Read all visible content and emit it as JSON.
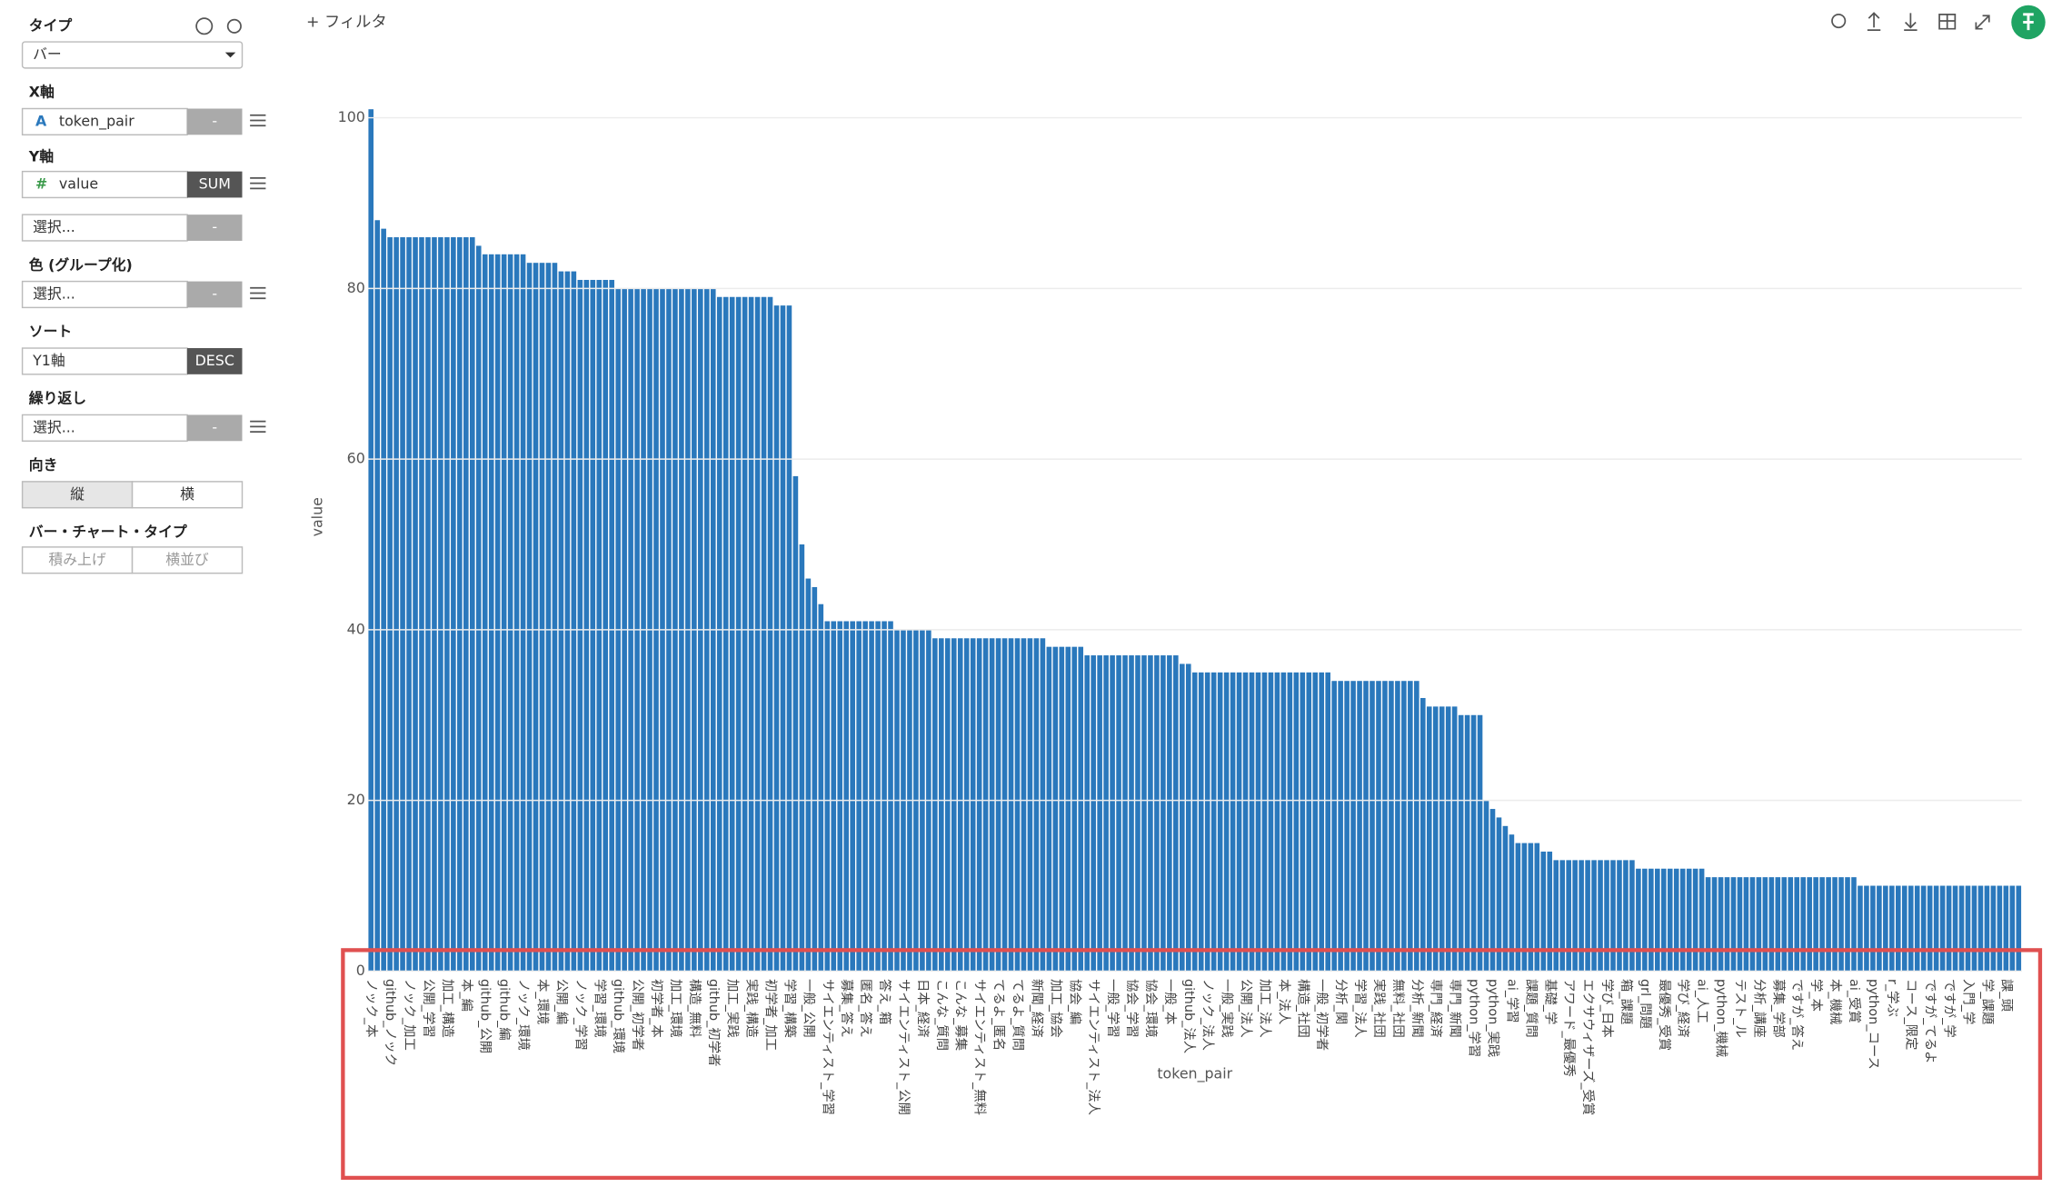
{
  "toolbar": {
    "filter": "+ フィルタ"
  },
  "sidebar": {
    "type_label": "タイプ",
    "type_value": "バー",
    "x_axis_label": "X軸",
    "x_field_icon": "A",
    "x_field": "token_pair",
    "x_agg": "-",
    "y_axis_label": "Y軸",
    "y_field_icon": "#",
    "y_field": "value",
    "y_agg": "SUM",
    "extra_select": "選択...",
    "extra_agg": "-",
    "color_label": "色 (グループ化)",
    "color_select": "選択...",
    "color_agg": "-",
    "sort_label": "ソート",
    "sort_field": "Y1軸",
    "sort_order": "DESC",
    "wrap_label": "繰り返し",
    "wrap_select": "選択...",
    "wrap_agg": "-",
    "orientation_label": "向き",
    "orientation_options": [
      "縦",
      "横"
    ],
    "bar_type_label": "バー・チャート・タイプ",
    "bar_type_options": [
      "積み上げ",
      "横並び"
    ]
  },
  "chart_data": {
    "type": "bar",
    "x_label": "token_pair",
    "y_label": "value",
    "color": "#2a78bc",
    "grid": true,
    "ylim": [
      0,
      101
    ],
    "yticks": [
      0,
      20,
      40,
      60,
      80,
      100
    ],
    "categories": [
      "ノック_本",
      null,
      null,
      "github_ノック",
      null,
      null,
      "ノック_加工",
      null,
      null,
      "公開_学習",
      null,
      null,
      "加工_構造",
      null,
      null,
      "本_編",
      null,
      null,
      "github_公開",
      null,
      null,
      "github_編",
      null,
      null,
      "ノック_環境",
      null,
      null,
      "本_環境",
      null,
      null,
      "公開_編",
      null,
      null,
      "ノック_学習",
      null,
      null,
      "学習_環境",
      null,
      null,
      "github_環境",
      null,
      null,
      "公開_初学者",
      null,
      null,
      "初学者_本",
      null,
      null,
      "加工_環境",
      null,
      null,
      "構造_無料",
      null,
      null,
      "github_初学者",
      null,
      null,
      "加工_実践",
      null,
      null,
      "実践_構造",
      null,
      null,
      "初学者_加工",
      null,
      null,
      "学習_構築",
      null,
      null,
      "一般_公開",
      null,
      null,
      "サイエンティスト_学習",
      null,
      null,
      "募集_答え",
      null,
      null,
      "匿名_答え",
      null,
      null,
      "答え_箱",
      null,
      null,
      "サイエンティスト_公開",
      null,
      null,
      "日本_経済",
      null,
      null,
      "こんな_質問",
      null,
      null,
      "こんな_募集",
      null,
      null,
      "サイエンティスト_無料",
      null,
      null,
      "てるよ_匿名",
      null,
      null,
      "てるよ_質問",
      null,
      null,
      "新聞_経済",
      null,
      null,
      "加工_協会",
      null,
      null,
      "協会_編",
      null,
      null,
      "サイエンティスト_法人",
      null,
      null,
      "一般_学習",
      null,
      null,
      "協会_学習",
      null,
      null,
      "協会_環境",
      null,
      null,
      "一般_本",
      null,
      null,
      "github_法人",
      null,
      null,
      "ノック_法人",
      null,
      null,
      "一般_実践",
      null,
      null,
      "公開_法人",
      null,
      null,
      "加工_法人",
      null,
      null,
      "本_法人",
      null,
      null,
      "構造_社団",
      null,
      null,
      "一般_初学者",
      null,
      null,
      "分析_関",
      null,
      null,
      "学習_法人",
      null,
      null,
      "実践_社団",
      null,
      null,
      "無料_社団",
      null,
      null,
      "分析_新聞",
      null,
      null,
      "専門_経済",
      null,
      null,
      "専門_新聞",
      null,
      null,
      "python_学習",
      null,
      null,
      "python_実践",
      null,
      null,
      "ai_学習",
      null,
      null,
      "課題_質問",
      null,
      null,
      "基礎_学",
      null,
      null,
      "アワード_最優秀",
      null,
      null,
      "エクサウィザーズ_受賞",
      null,
      null,
      "学び_日本",
      null,
      null,
      "箱_課題",
      null,
      null,
      "grl_問題",
      null,
      null,
      "最優秀_受賞",
      null,
      null,
      "学び_経済",
      null,
      null,
      "ai_人工",
      null,
      null,
      "python_機械",
      null,
      null,
      "テスト_ル",
      null,
      null,
      "分析_講座",
      null,
      null,
      "募集_学部",
      null,
      null,
      "ですが_答え",
      null,
      null,
      "学_本",
      null,
      null,
      "本_機械",
      null,
      null,
      "ai_受賞",
      null,
      null,
      "python_コース",
      null,
      null,
      "r_学ぶ",
      null,
      null,
      "コース_限定",
      null,
      null,
      "ですが_てるよ",
      null,
      null,
      "ですが_学",
      null,
      null,
      "入門_学",
      null,
      null,
      "学_課題",
      null,
      null,
      "課_頭",
      null,
      null
    ],
    "values": [
      101,
      88,
      87,
      86,
      86,
      86,
      86,
      86,
      86,
      86,
      86,
      86,
      86,
      86,
      86,
      86,
      86,
      85,
      84,
      84,
      84,
      84,
      84,
      84,
      84,
      83,
      83,
      83,
      83,
      83,
      82,
      82,
      82,
      81,
      81,
      81,
      81,
      81,
      81,
      80,
      80,
      80,
      80,
      80,
      80,
      80,
      80,
      80,
      80,
      80,
      80,
      80,
      80,
      80,
      80,
      79,
      79,
      79,
      79,
      79,
      79,
      79,
      79,
      79,
      78,
      78,
      78,
      58,
      50,
      46,
      45,
      43,
      41,
      41,
      41,
      41,
      41,
      41,
      41,
      41,
      41,
      41,
      41,
      40,
      40,
      40,
      40,
      40,
      40,
      39,
      39,
      39,
      39,
      39,
      39,
      39,
      39,
      39,
      39,
      39,
      39,
      39,
      39,
      39,
      39,
      39,
      39,
      38,
      38,
      38,
      38,
      38,
      38,
      37,
      37,
      37,
      37,
      37,
      37,
      37,
      37,
      37,
      37,
      37,
      37,
      37,
      37,
      37,
      36,
      36,
      35,
      35,
      35,
      35,
      35,
      35,
      35,
      35,
      35,
      35,
      35,
      35,
      35,
      35,
      35,
      35,
      35,
      35,
      35,
      35,
      35,
      35,
      34,
      34,
      34,
      34,
      34,
      34,
      34,
      34,
      34,
      34,
      34,
      34,
      34,
      34,
      32,
      31,
      31,
      31,
      31,
      31,
      30,
      30,
      30,
      30,
      20,
      19,
      18,
      17,
      16,
      15,
      15,
      15,
      15,
      14,
      14,
      13,
      13,
      13,
      13,
      13,
      13,
      13,
      13,
      13,
      13,
      13,
      13,
      13,
      12,
      12,
      12,
      12,
      12,
      12,
      12,
      12,
      12,
      12,
      12,
      11,
      11,
      11,
      11,
      11,
      11,
      11,
      11,
      11,
      11,
      11,
      11,
      11,
      11,
      11,
      11,
      11,
      11,
      11,
      11,
      11,
      11,
      11,
      11,
      10,
      10,
      10,
      10,
      10,
      10,
      10,
      10,
      10,
      10,
      10,
      10,
      10,
      10,
      10,
      10,
      10,
      10,
      10,
      10,
      10,
      10,
      10,
      10,
      10,
      10
    ]
  }
}
